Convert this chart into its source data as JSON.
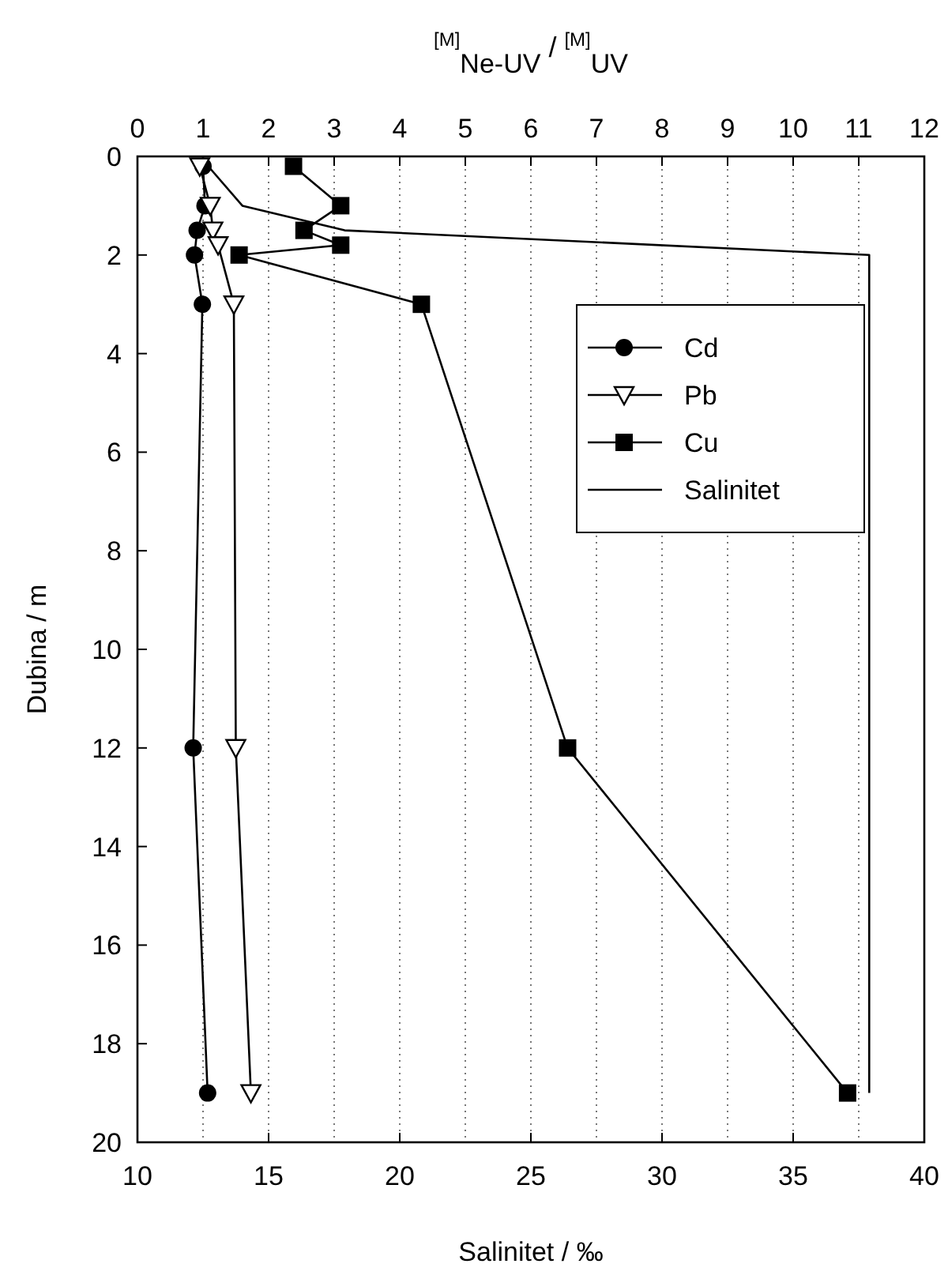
{
  "chart_data": {
    "type": "line",
    "x2label": "$^{[M]}$$_{Ne-UV}$ / $^{[M]}$$_{UV}$",
    "xlabel": "Salinitet / ‰",
    "ylabel": "Dubina / m",
    "xlim": [
      10,
      40
    ],
    "xticks": [
      10,
      15,
      20,
      25,
      30,
      35,
      40
    ],
    "x2lim": [
      0,
      12
    ],
    "x2ticks": [
      0,
      1,
      2,
      3,
      4,
      5,
      6,
      7,
      8,
      9,
      10,
      11,
      12
    ],
    "ylim": [
      20,
      0
    ],
    "yticks": [
      0,
      2,
      4,
      6,
      8,
      10,
      12,
      14,
      16,
      18,
      20
    ],
    "grid": "x",
    "legend": "top right",
    "series": [
      {
        "name": "Cd",
        "color": "#000000",
        "axis": "x2",
        "marker": "circle",
        "x": [
          1.0,
          1.03,
          0.91,
          0.87,
          0.99,
          0.85,
          1.07
        ],
        "values": [
          0.2,
          1,
          1.5,
          2,
          3,
          12,
          19
        ]
      },
      {
        "name": "Pb",
        "color": "#000000",
        "axis": "x2",
        "marker": "triangle",
        "x": [
          0.95,
          1.11,
          1.15,
          1.23,
          1.47,
          1.5,
          1.73
        ],
        "values": [
          0.2,
          1,
          1.5,
          1.8,
          3,
          12,
          19
        ]
      },
      {
        "name": "Cu",
        "color": "#000000",
        "axis": "x2",
        "marker": "square",
        "x": [
          2.38,
          3.1,
          2.54,
          3.1,
          1.55,
          4.33,
          6.56,
          10.83
        ],
        "values": [
          0.2,
          1,
          1.5,
          1.8,
          2,
          3,
          12,
          19
        ]
      },
      {
        "name": "Salinitet",
        "color": "#000000",
        "marker": "none",
        "x": [
          12.7,
          14.0,
          17.9,
          37.9,
          37.9
        ],
        "values": [
          0.2,
          1,
          1.5,
          2,
          19
        ]
      }
    ]
  }
}
